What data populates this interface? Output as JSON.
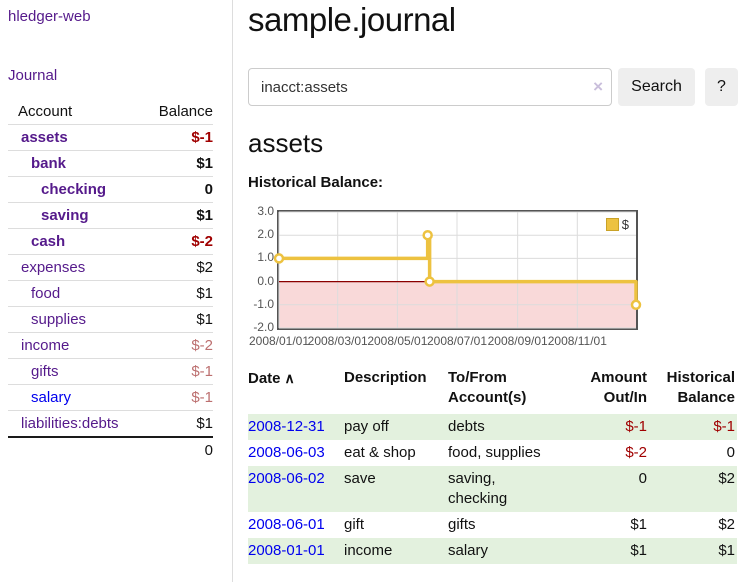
{
  "app": {
    "brand": "hledger-web",
    "nav": {
      "journal": "Journal"
    }
  },
  "colors": {
    "link_purple": "#551a8b",
    "link_blue": "#0000ee",
    "negative_strong": "#a00000",
    "negative_muted": "#bc6f6f",
    "row_stripe_green": "#e3f1de",
    "chart_gold": "#edc240",
    "chart_negative_fill": "#f9d9d9",
    "chart_zero_line": "#8b0000"
  },
  "sidebar": {
    "headers": {
      "account": "Account",
      "balance": "Balance"
    },
    "accounts": [
      {
        "name": "assets",
        "balance": "$-1",
        "level": 0,
        "bold": true,
        "neg": "strong",
        "link_style": "purple"
      },
      {
        "name": "bank",
        "balance": "$1",
        "level": 1,
        "bold": true,
        "neg": "none",
        "link_style": "purple"
      },
      {
        "name": "checking",
        "balance": "0",
        "level": 2,
        "bold": true,
        "neg": "none",
        "link_style": "purple"
      },
      {
        "name": "saving",
        "balance": "$1",
        "level": 2,
        "bold": true,
        "neg": "none",
        "link_style": "purple"
      },
      {
        "name": "cash",
        "balance": "$-2",
        "level": 1,
        "bold": true,
        "neg": "strong",
        "link_style": "purple"
      },
      {
        "name": "expenses",
        "balance": "$2",
        "level": 0,
        "bold": false,
        "neg": "none",
        "link_style": "purple"
      },
      {
        "name": "food",
        "balance": "$1",
        "level": 1,
        "bold": false,
        "neg": "none",
        "link_style": "purple"
      },
      {
        "name": "supplies",
        "balance": "$1",
        "level": 1,
        "bold": false,
        "neg": "none",
        "link_style": "purple"
      },
      {
        "name": "income",
        "balance": "$-2",
        "level": 0,
        "bold": false,
        "neg": "muted",
        "link_style": "purple"
      },
      {
        "name": "gifts",
        "balance": "$-1",
        "level": 1,
        "bold": false,
        "neg": "muted",
        "link_style": "purple"
      },
      {
        "name": "salary",
        "balance": "$-1",
        "level": 1,
        "bold": false,
        "neg": "muted",
        "link_style": "blue"
      },
      {
        "name": "liabilities:debts",
        "balance": "$1",
        "level": 0,
        "bold": false,
        "neg": "none",
        "link_style": "purple"
      }
    ],
    "total": "0"
  },
  "main": {
    "title": "sample.journal",
    "search": {
      "value": "inacct:assets",
      "clear_icon": "×",
      "search_button": "Search",
      "help_button": "?"
    },
    "account_title": "assets",
    "chart_heading": "Historical Balance:"
  },
  "chart_data": {
    "type": "line",
    "step": true,
    "title": "Historical Balance",
    "series": [
      {
        "name": "$",
        "color": "#edc240",
        "points": [
          [
            "2008-01-01",
            1
          ],
          [
            "2008-06-01",
            2
          ],
          [
            "2008-06-03",
            0
          ],
          [
            "2008-12-31",
            -1
          ]
        ]
      }
    ],
    "x_range": [
      "2008-01-01",
      "2008-12-31"
    ],
    "x_ticks": [
      "2008/01/01",
      "2008/03/01",
      "2008/05/01",
      "2008/07/01",
      "2008/09/01",
      "2008/11/01"
    ],
    "y_ticks": [
      "3.0",
      "2.0",
      "1.0",
      "0.0",
      "-1.0",
      "-2.0"
    ],
    "ylim": [
      -2,
      3
    ],
    "legend": {
      "label": "$",
      "position": "top-right"
    },
    "grid": true,
    "negative_region": true
  },
  "register": {
    "sort_glyph": "∧",
    "columns": [
      {
        "label": "Date"
      },
      {
        "label": "Description"
      },
      {
        "label": "To/From Account(s)"
      },
      {
        "label": "Amount Out/In"
      },
      {
        "label": "Historical Balance"
      }
    ],
    "rows": [
      {
        "date": "2008-12-31",
        "description": "pay off",
        "accounts": "debts",
        "amount": "$-1",
        "balance": "$-1"
      },
      {
        "date": "2008-06-03",
        "description": "eat & shop",
        "accounts": "food, supplies",
        "amount": "$-2",
        "balance": "0"
      },
      {
        "date": "2008-06-02",
        "description": "save",
        "accounts": "saving, checking",
        "amount": "0",
        "balance": "$2"
      },
      {
        "date": "2008-06-01",
        "description": "gift",
        "accounts": "gifts",
        "amount": "$1",
        "balance": "$2"
      },
      {
        "date": "2008-01-01",
        "description": "income",
        "accounts": "salary",
        "amount": "$1",
        "balance": "$1"
      }
    ]
  }
}
